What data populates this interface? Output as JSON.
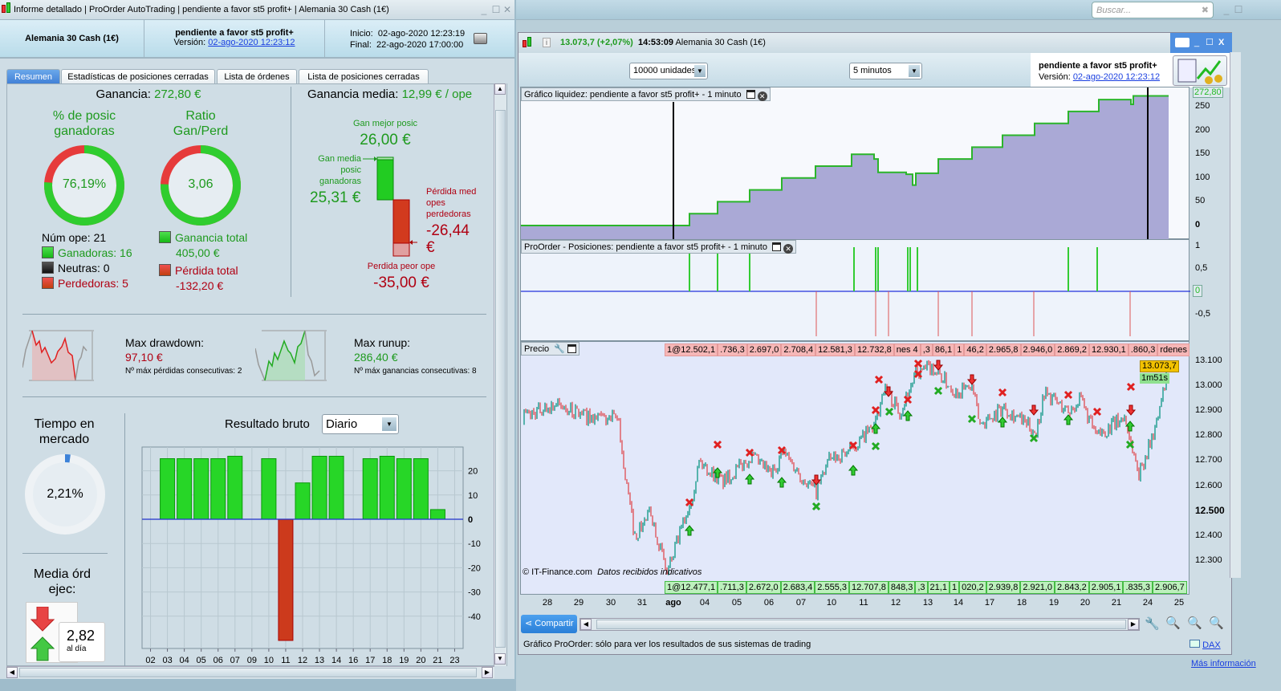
{
  "left_window": {
    "title_parts": [
      "Informe detallado",
      "ProOrder AutoTrading",
      "pendiente a favor st5  profit+",
      "Alemania 30 Cash (1€)"
    ],
    "instrument": "Alemania 30 Cash (1€)",
    "system_name": "pendiente a favor st5  profit+",
    "version_label": "Versión:",
    "version_value": "02-ago-2020 12:23:12",
    "start_label": "Inicio:",
    "start_value": "02-ago-2020 12:23:19",
    "end_label": "Final:",
    "end_value": "22-ago-2020 17:00:00",
    "tabs": [
      {
        "label": "Resumen",
        "active": true
      },
      {
        "label": "Estadísticas de posiciones cerradas",
        "active": false
      },
      {
        "label": "Lista de órdenes",
        "active": false
      },
      {
        "label": "Lista de posiciones cerradas",
        "active": false
      }
    ]
  },
  "summary": {
    "gain_label": "Ganancia:",
    "gain_value": "272,80 €",
    "win_pct_title_1": "% de posic",
    "win_pct_title_2": "ganadoras",
    "win_pct_value": "76,19%",
    "win_pct": 76.19,
    "ratio_title_1": "Ratio",
    "ratio_title_2": "Gan/Perd",
    "ratio_value": "3,06",
    "num_ops": "Núm ope: 21",
    "winners": "Ganadoras: 16",
    "neutral": "Neutras: 0",
    "losers": "Perdedoras: 5",
    "total_gain_label": "Ganancia total",
    "total_gain_value": "405,00 €",
    "total_loss_label": "Pérdida total",
    "total_loss_value": "-132,20 €",
    "avg_gain_label": "Ganancia media:",
    "avg_gain_value": "12,99 € / ope",
    "best_label": "Gan mejor posic",
    "best_value": "26,00 €",
    "avg_win_label_1": "Gan media",
    "avg_win_label_2": "posic",
    "avg_win_label_3": "ganadoras",
    "avg_win_value": "25,31 €",
    "avg_loss_label_1": "Pérdida med",
    "avg_loss_label_2": "opes",
    "avg_loss_label_3": "perdedoras",
    "avg_loss_value_1": "-26,44",
    "avg_loss_value_2": "€",
    "worst_label": "Perdida peor ope",
    "worst_value": "-35,00 €",
    "drawdown_label": "Max drawdown:",
    "drawdown_value": "97,10 €",
    "drawdown_sub": "Nº máx pérdidas consecutivas: 2",
    "runup_label": "Max runup:",
    "runup_value": "286,40 €",
    "runup_sub": "Nº máx ganancias consecutivas: 8",
    "time_title_1": "Tiempo en",
    "time_title_2": "mercado",
    "time_value": "2,21%",
    "time_pct": 2.21,
    "orders_title_1": "Media órd",
    "orders_title_2": "ejec:",
    "orders_value": "2,82",
    "orders_unit": "al día",
    "result_label": "Resultado bruto",
    "result_period": "Diario"
  },
  "chart_data": {
    "type": "bar",
    "categories": [
      "02",
      "03",
      "04",
      "05",
      "06",
      "07",
      "09",
      "10",
      "11",
      "12",
      "13",
      "14",
      "16",
      "17",
      "18",
      "19",
      "20",
      "21",
      "23"
    ],
    "values": [
      0,
      25,
      25,
      25,
      25,
      26,
      0,
      25,
      -50,
      15,
      26,
      26,
      0,
      25,
      26,
      25,
      25,
      4,
      0
    ],
    "yticks": [
      "20",
      "10",
      "0",
      "-10",
      "-20",
      "-30",
      "-40"
    ],
    "ylim": [
      -53,
      30
    ],
    "grid": true
  },
  "right_window": {
    "search_placeholder": "Buscar...",
    "quote_value": "13.073,7 (+2,07%)",
    "quote_time": "14:53:09",
    "quote_instrument": "Alemania 30 Cash (1€)",
    "units_select": "10000 unidades",
    "timeframe_select": "5 minutos",
    "system_name": "pendiente a favor st5  profit+",
    "version_label": "Versión:",
    "version_value": "02-ago-2020 12:23:12",
    "liquidity_title": "Gráfico liquidez: pendiente a favor st5  profit+ - 1 minuto",
    "liquidity_last": "272,80",
    "liquidity_ticks": [
      "250",
      "200",
      "150",
      "100",
      "50",
      "0"
    ],
    "positions_title": "ProOrder - Posiciones: pendiente a favor st5  profit+ - 1 minuto",
    "positions_ticks": [
      "1",
      "0,5",
      "0",
      "-0,5"
    ],
    "price_title": "Precio",
    "price_ticks": [
      "13.100",
      "13.000",
      "12.900",
      "12.800",
      "12.700",
      "12.600",
      "12.500",
      "12.400",
      "12.300"
    ],
    "price_last": "13.073,7",
    "candle_timer": "1m51s",
    "sell_orders": [
      "1@12.502,1",
      ".736,3",
      "2.697,0",
      "2.708,4",
      "12.581,3",
      "12.732,8",
      "nes 4",
      ",3",
      "86,1",
      "1",
      "46,2",
      "2.965,8",
      "2.946,0",
      "2.869,2",
      "12.930,1",
      ".860,3",
      "rdenes"
    ],
    "buy_orders": [
      "1@12.477,1",
      ".711,3",
      "2.672,0",
      "2.683,4",
      "2.555,3",
      "12.707,8",
      "848,3",
      ",3",
      "21,1",
      "1",
      "020,2",
      "2.939,8",
      "2.921,0",
      "2.843,2",
      "2.905,1",
      ".835,3",
      "2.906,7"
    ],
    "copyright": "© IT-Finance.com",
    "data_note": "Datos recibidos indicativos",
    "date_labels": [
      "28",
      "29",
      "30",
      "31",
      "ago",
      "04",
      "05",
      "06",
      "07",
      "10",
      "11",
      "12",
      "13",
      "14",
      "17",
      "18",
      "19",
      "20",
      "21",
      "24",
      "25"
    ],
    "share_label": "Compartir",
    "status_text": "Gráfico ProOrder: sólo para ver los resultados de sus sistemas de trading",
    "dax_link": "DAX",
    "more_info": "Más información"
  },
  "colors": {
    "green": "#1e9a1e",
    "red": "#b00012",
    "liquidity_fill": "#aaa9d6",
    "accent": "#3f7fd6"
  }
}
